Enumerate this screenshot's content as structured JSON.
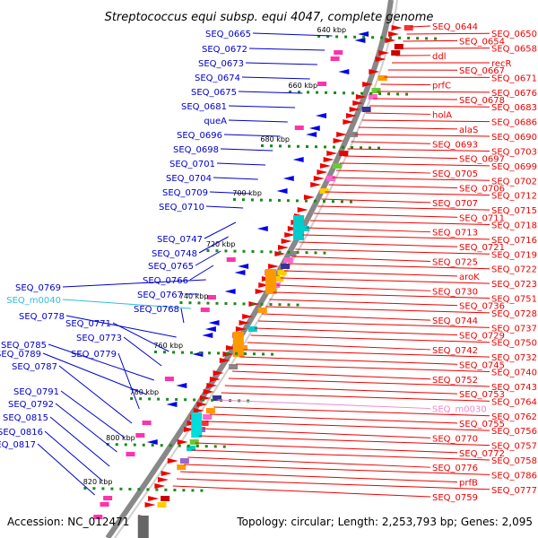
{
  "title": "Streptococcus equi subsp. equi 4047, complete genome",
  "footer": {
    "accession": "Accession: NC_012471",
    "summary": "Topology: circular; Length: 2,253,793 bp; Genes: 2,095"
  },
  "colors": {
    "left_label": "#0000cc",
    "left_special": "#33bbdd",
    "right_label": "#ee0000",
    "right_special": "#ee88cc",
    "backbone": "#888888",
    "tick": "#1a8a1a"
  },
  "kbp_marks": [
    "640 kbp",
    "660 kbp",
    "680 kbp",
    "700 kbp",
    "720 kbp",
    "740 kbp",
    "760 kbp",
    "780 kbp",
    "800 kbp",
    "820 kbp"
  ],
  "left_labels": [
    {
      "text": "SEQ_0665"
    },
    {
      "text": "SEQ_0672"
    },
    {
      "text": "SEQ_0673"
    },
    {
      "text": "SEQ_0674"
    },
    {
      "text": "SEQ_0675"
    },
    {
      "text": "SEQ_0681"
    },
    {
      "text": "queA"
    },
    {
      "text": "SEQ_0696"
    },
    {
      "text": "SEQ_0698"
    },
    {
      "text": "SEQ_0701"
    },
    {
      "text": "SEQ_0704"
    },
    {
      "text": "SEQ_0709"
    },
    {
      "text": "SEQ_0710"
    },
    {
      "text": "SEQ_0747"
    },
    {
      "text": "SEQ_0748"
    },
    {
      "text": "SEQ_0765"
    },
    {
      "text": "SEQ_0766"
    },
    {
      "text": "SEQ_0769"
    },
    {
      "text": "SEQ_0767"
    },
    {
      "text": "SEQ_m0040",
      "special": true
    },
    {
      "text": "SEQ_0768"
    },
    {
      "text": "SEQ_0778"
    },
    {
      "text": "SEQ_0771"
    },
    {
      "text": "SEQ_0773"
    },
    {
      "text": "SEQ_0785"
    },
    {
      "text": "SEQ_0789"
    },
    {
      "text": "SEQ_0779"
    },
    {
      "text": "SEQ_0787"
    },
    {
      "text": "SEQ_0791"
    },
    {
      "text": "SEQ_0792"
    },
    {
      "text": "SEQ_0815"
    },
    {
      "text": "SEQ_0816"
    },
    {
      "text": "SEQ_0817"
    }
  ],
  "right_labels": [
    {
      "text": "SEQ_0644"
    },
    {
      "text": "SEQ_0650"
    },
    {
      "text": "SEQ_0654"
    },
    {
      "text": "SEQ_0658"
    },
    {
      "text": "ddl"
    },
    {
      "text": "recR"
    },
    {
      "text": "SEQ_0667"
    },
    {
      "text": "SEQ_0671"
    },
    {
      "text": "prfC"
    },
    {
      "text": "SEQ_0676"
    },
    {
      "text": "SEQ_0678"
    },
    {
      "text": "SEQ_0683"
    },
    {
      "text": "holA"
    },
    {
      "text": "SEQ_0686"
    },
    {
      "text": "alaS"
    },
    {
      "text": "SEQ_0690"
    },
    {
      "text": "SEQ_0693"
    },
    {
      "text": "SEQ_0703"
    },
    {
      "text": "SEQ_0697"
    },
    {
      "text": "SEQ_0699"
    },
    {
      "text": "SEQ_0705"
    },
    {
      "text": "SEQ_0702"
    },
    {
      "text": "SEQ_0706"
    },
    {
      "text": "SEQ_0712"
    },
    {
      "text": "SEQ_0707"
    },
    {
      "text": "SEQ_0715"
    },
    {
      "text": "SEQ_0711"
    },
    {
      "text": "SEQ_0718"
    },
    {
      "text": "SEQ_0713"
    },
    {
      "text": "SEQ_0716"
    },
    {
      "text": "SEQ_0721"
    },
    {
      "text": "SEQ_0719"
    },
    {
      "text": "SEQ_0725"
    },
    {
      "text": "SEQ_0722"
    },
    {
      "text": "aroK"
    },
    {
      "text": "SEQ_0723"
    },
    {
      "text": "SEQ_0730"
    },
    {
      "text": "SEQ_0751"
    },
    {
      "text": "SEQ_0736"
    },
    {
      "text": "SEQ_0728"
    },
    {
      "text": "SEQ_0744"
    },
    {
      "text": "SEQ_0737"
    },
    {
      "text": "SEQ_0729"
    },
    {
      "text": "SEQ_0750"
    },
    {
      "text": "SEQ_0742"
    },
    {
      "text": "SEQ_0732"
    },
    {
      "text": "SEQ_0745"
    },
    {
      "text": "SEQ_0740"
    },
    {
      "text": "SEQ_0752"
    },
    {
      "text": "SEQ_0743"
    },
    {
      "text": "SEQ_0753"
    },
    {
      "text": "SEQ_0764"
    },
    {
      "text": "SEQ_m0030",
      "special": true
    },
    {
      "text": "SEQ_0762"
    },
    {
      "text": "SEQ_0755"
    },
    {
      "text": "SEQ_0756"
    },
    {
      "text": "SEQ_0770"
    },
    {
      "text": "SEQ_0757"
    },
    {
      "text": "SEQ_0772"
    },
    {
      "text": "SEQ_0758"
    },
    {
      "text": "SEQ_0776"
    },
    {
      "text": "SEQ_0786"
    },
    {
      "text": "prfB"
    },
    {
      "text": "SEQ_0777"
    },
    {
      "text": "SEQ_0759"
    }
  ]
}
